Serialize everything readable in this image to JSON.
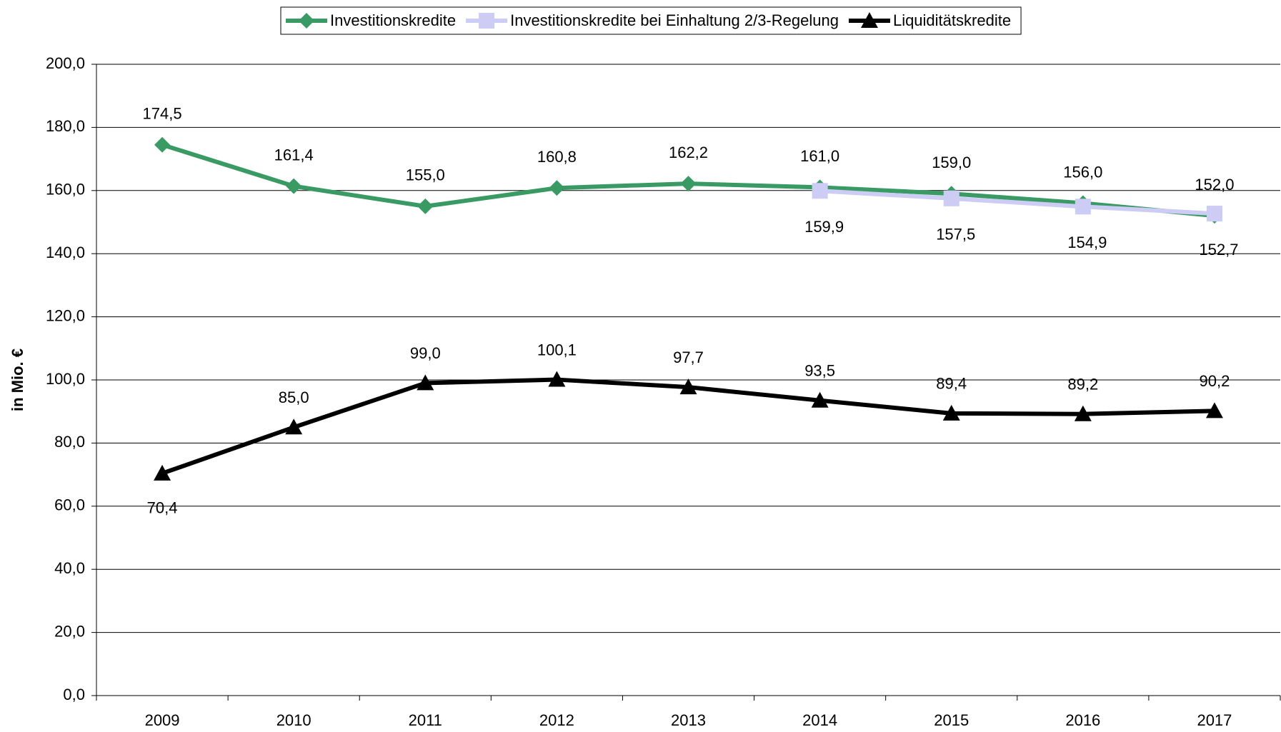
{
  "chart_data": {
    "type": "line",
    "y_label": "in Mio. €",
    "categories": [
      "2009",
      "2010",
      "2011",
      "2012",
      "2013",
      "2014",
      "2015",
      "2016",
      "2017"
    ],
    "series": [
      {
        "name": "Investitionskredite",
        "color": "#3a9a64",
        "marker": "diamond",
        "values": [
          174.5,
          161.4,
          155.0,
          160.8,
          162.2,
          161.0,
          159.0,
          156.0,
          152.0
        ],
        "value_labels": [
          "174,5",
          "161,4",
          "155,0",
          "160,8",
          "162,2",
          "161,0",
          "159,0",
          "156,0",
          "152,0"
        ]
      },
      {
        "name": "Investitionskredite bei Einhaltung 2/3-Regelung",
        "color": "#ccccf5",
        "marker": "square",
        "values": [
          null,
          null,
          null,
          null,
          null,
          159.9,
          157.5,
          154.9,
          152.7
        ],
        "value_labels": [
          null,
          null,
          null,
          null,
          null,
          "159,9",
          "157,5",
          "154,9",
          "152,7"
        ]
      },
      {
        "name": "Liquiditätskredite",
        "color": "#000000",
        "marker": "triangle",
        "values": [
          70.4,
          85.0,
          99.0,
          100.1,
          97.7,
          93.5,
          89.4,
          89.2,
          90.2
        ],
        "value_labels": [
          "70,4",
          "85,0",
          "99,0",
          "100,1",
          "97,7",
          "93,5",
          "89,4",
          "89,2",
          "90,2"
        ]
      }
    ],
    "ylim": [
      0,
      200
    ],
    "yticks": [
      {
        "value": 0,
        "label": "0,0"
      },
      {
        "value": 20,
        "label": "20,0"
      },
      {
        "value": 40,
        "label": "40,0"
      },
      {
        "value": 60,
        "label": "60,0"
      },
      {
        "value": 80,
        "label": "80,0"
      },
      {
        "value": 100,
        "label": "100,0"
      },
      {
        "value": 120,
        "label": "120,0"
      },
      {
        "value": 140,
        "label": "140,0"
      },
      {
        "value": 160,
        "label": "160,0"
      },
      {
        "value": 180,
        "label": "180,0"
      },
      {
        "value": 200,
        "label": "200,0"
      }
    ],
    "grid": true,
    "legend": "top"
  }
}
